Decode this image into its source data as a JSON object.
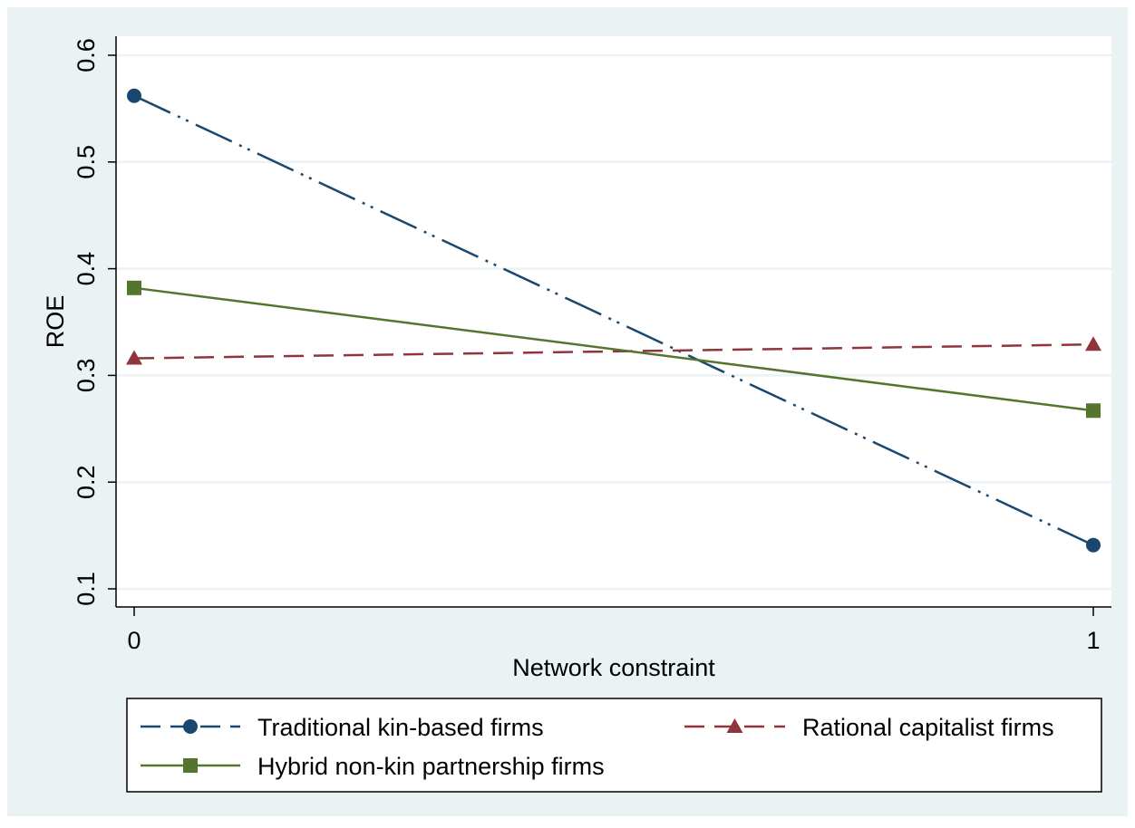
{
  "chart_data": {
    "type": "line",
    "xlabel": "Network constraint",
    "ylabel": "ROE",
    "xlim": [
      0,
      1
    ],
    "ylim": [
      0.1,
      0.6
    ],
    "xticks": [
      0,
      1
    ],
    "yticks": [
      0.1,
      0.2,
      0.3,
      0.4,
      0.5,
      0.6
    ],
    "grid": "horizontal",
    "legend_position": "bottom",
    "x": [
      0,
      1
    ],
    "series": [
      {
        "name": "Traditional kin-based firms",
        "values": [
          0.562,
          0.141
        ],
        "color": "#1a476f",
        "marker": "circle",
        "line": "long-dash-dot-dot"
      },
      {
        "name": "Rational capitalist firms",
        "values": [
          0.316,
          0.329
        ],
        "color": "#90353b",
        "marker": "triangle",
        "line": "dash"
      },
      {
        "name": "Hybrid non-kin partnership firms",
        "values": [
          0.382,
          0.267
        ],
        "color": "#55752f",
        "marker": "square",
        "line": "solid"
      }
    ]
  },
  "colors": {
    "outer_background": "#eaf2f3",
    "plot_background": "#ffffff",
    "gridline": "#eaf2f3"
  }
}
